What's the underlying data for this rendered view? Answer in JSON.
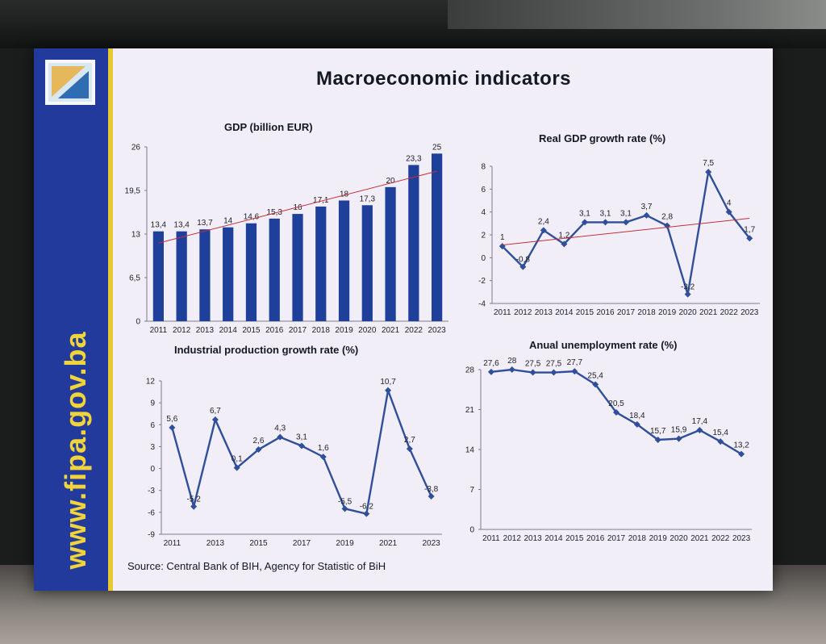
{
  "page": {
    "title": "Macroeconomic indicators",
    "sidebar_url": "www.fipa.gov.ba",
    "source": "Source: Central Bank of BIH, Agency for Statistic of BiH"
  },
  "colors": {
    "sidebar": "#213a9c",
    "sidebar_text": "#f1d33a",
    "bars": "#1e3f9a",
    "line": "#2f4f9a",
    "trend": "#c0303a"
  },
  "chart_data": [
    {
      "id": "gdp",
      "type": "bar",
      "title": "GDP (billion EUR)",
      "categories": [
        "2011",
        "2012",
        "2013",
        "2014",
        "2015",
        "2016",
        "2017",
        "2018",
        "2019",
        "2020",
        "2021",
        "2022",
        "2023"
      ],
      "values": [
        13.4,
        13.4,
        13.7,
        14,
        14.6,
        15.3,
        16,
        17.1,
        18,
        17.3,
        20,
        23.3,
        25
      ],
      "value_labels": [
        "13,4",
        "13,4",
        "13,7",
        "14",
        "14,6",
        "15,3",
        "16",
        "17,1",
        "18",
        "17,3",
        "20",
        "23,3",
        "25"
      ],
      "ylim": [
        0,
        26
      ],
      "yticks": [
        "0",
        "6,5",
        "13",
        "19,5",
        "26"
      ],
      "trendline": true,
      "grid": false
    },
    {
      "id": "real_gdp_growth",
      "type": "line",
      "title": "Real GDP growth rate (%)",
      "categories": [
        "2011",
        "2012",
        "2013",
        "2014",
        "2015",
        "2016",
        "2017",
        "2018",
        "2019",
        "2020",
        "2021",
        "2022",
        "2023"
      ],
      "values": [
        1,
        -0.8,
        2.4,
        1.2,
        3.1,
        3.1,
        3.1,
        3.7,
        2.8,
        -3.2,
        7.5,
        4,
        1.7
      ],
      "value_labels": [
        "1",
        "-0,8",
        "2,4",
        "1,2",
        "3,1",
        "3,1",
        "3,1",
        "3,7",
        "2,8",
        "-3,2",
        "7,5",
        "4",
        "1,7"
      ],
      "ylim": [
        -4,
        8
      ],
      "yticks": [
        "-4",
        "-2",
        "0",
        "2",
        "4",
        "6",
        "8"
      ],
      "trendline": true,
      "grid": false
    },
    {
      "id": "industrial_production",
      "type": "line",
      "title": "Industrial production growth rate (%)",
      "categories": [
        "2011",
        "2012",
        "2013",
        "2014",
        "2015",
        "2016",
        "2017",
        "2018",
        "2019",
        "2020",
        "2021",
        "2022",
        "2023"
      ],
      "xtick_labels": [
        "2011",
        "",
        "2013",
        "",
        "2015",
        "",
        "2017",
        "",
        "2019",
        "",
        "2021",
        "",
        "2023"
      ],
      "values": [
        5.6,
        -5.2,
        6.7,
        0.1,
        2.6,
        4.3,
        3.1,
        1.6,
        -5.5,
        -6.2,
        10.7,
        2.7,
        -3.8
      ],
      "value_labels": [
        "5,6",
        "-5,2",
        "6,7",
        "0,1",
        "2,6",
        "4,3",
        "3,1",
        "1,6",
        "-5,5",
        "-6,2",
        "10,7",
        "2,7",
        "-3,8"
      ],
      "ylim": [
        -9,
        12
      ],
      "yticks": [
        "-9",
        "-6",
        "-3",
        "0",
        "3",
        "6",
        "9",
        "12"
      ],
      "trendline": false,
      "grid": false
    },
    {
      "id": "unemployment",
      "type": "line",
      "title": "Anual unemployment rate (%)",
      "categories": [
        "2011",
        "2012",
        "2013",
        "2014",
        "2015",
        "2016",
        "2017",
        "2018",
        "2019",
        "2020",
        "2021",
        "2022",
        "2023"
      ],
      "values": [
        27.6,
        28,
        27.5,
        27.5,
        27.7,
        25.4,
        20.5,
        18.4,
        15.7,
        15.9,
        17.4,
        15.4,
        13.2
      ],
      "value_labels": [
        "27,6",
        "28",
        "27,5",
        "27,5",
        "27,7",
        "25,4",
        "20,5",
        "18,4",
        "15,7",
        "15,9",
        "17,4",
        "15,4",
        "13,2"
      ],
      "ylim": [
        0,
        28
      ],
      "yticks": [
        "0",
        "7",
        "14",
        "21",
        "28"
      ],
      "trendline": false,
      "grid": false
    }
  ]
}
